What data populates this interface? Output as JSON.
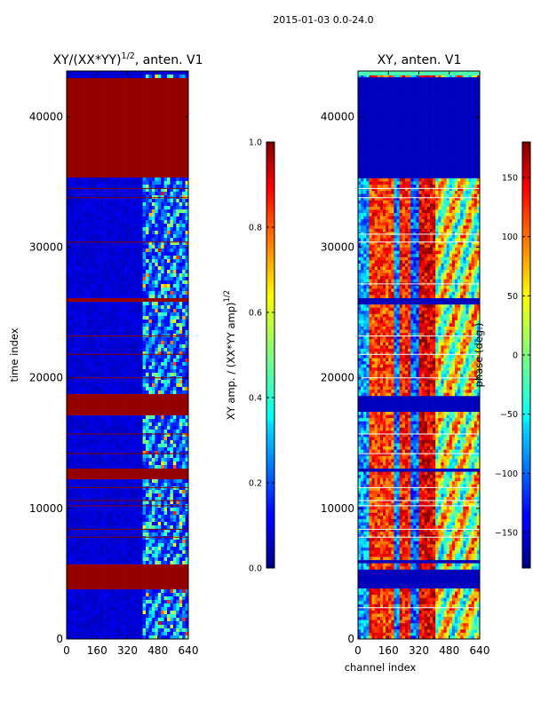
{
  "suptitle": "2015-01-03 0.0-24.0",
  "chart_data": [
    {
      "type": "heatmap",
      "title": "XY/(XX*YY)^(1/2), anten. V1",
      "title_main": "XY/(XX*YY)",
      "title_sup": "1/2",
      "title_tail": ", anten. V1",
      "xlabel": "",
      "ylabel": "time index",
      "xlim": [
        0,
        640
      ],
      "ylim": [
        0,
        43500
      ],
      "xticks": [
        "0",
        "160",
        "320",
        "480",
        "640"
      ],
      "yticks": [
        "0",
        "10000",
        "20000",
        "30000",
        "40000"
      ],
      "colorbar": {
        "label_main": "XY amp. / (XX*YY amp)",
        "label_sup": "1/2",
        "range": [
          0.0,
          1.0
        ],
        "ticks": [
          "0.0",
          "0.2",
          "0.4",
          "0.6",
          "0.8",
          "1.0"
        ],
        "colormap": "jet"
      },
      "saturated_bands": [
        [
          3900,
          5400
        ],
        [
          5500,
          5800
        ],
        [
          12100,
          13100
        ],
        [
          17100,
          18700
        ],
        [
          25700,
          26200
        ],
        [
          35300,
          43000
        ]
      ],
      "flag_lines": [
        7800,
        8400,
        10200,
        10600,
        11600,
        14200,
        15700,
        20000,
        21800,
        23200,
        30400,
        33800,
        34500
      ]
    },
    {
      "type": "heatmap",
      "title": "XY, anten. V1",
      "xlabel": "channel index",
      "ylabel": "",
      "xlim": [
        0,
        640
      ],
      "ylim": [
        0,
        43500
      ],
      "xticks": [
        "0",
        "160",
        "320",
        "480",
        "640"
      ],
      "yticks": [
        "0",
        "10000",
        "20000",
        "30000",
        "40000"
      ],
      "colorbar": {
        "label": "phase (deg.)",
        "range": [
          -180,
          180
        ],
        "ticks": [
          "−150",
          "−100",
          "−50",
          "0",
          "50",
          "100",
          "150"
        ],
        "colormap": "jet"
      },
      "flagged_bands": [
        [
          3900,
          5300
        ],
        [
          5700,
          6100
        ],
        [
          12800,
          13100
        ],
        [
          17500,
          18600
        ],
        [
          25700,
          26100
        ],
        [
          35300,
          43000
        ]
      ],
      "flag_lines": [
        2400,
        7800,
        8400,
        10200,
        10600,
        11600,
        14200,
        15700,
        20000,
        21800,
        23200,
        27200,
        30400,
        31000,
        33800,
        34500
      ]
    }
  ]
}
